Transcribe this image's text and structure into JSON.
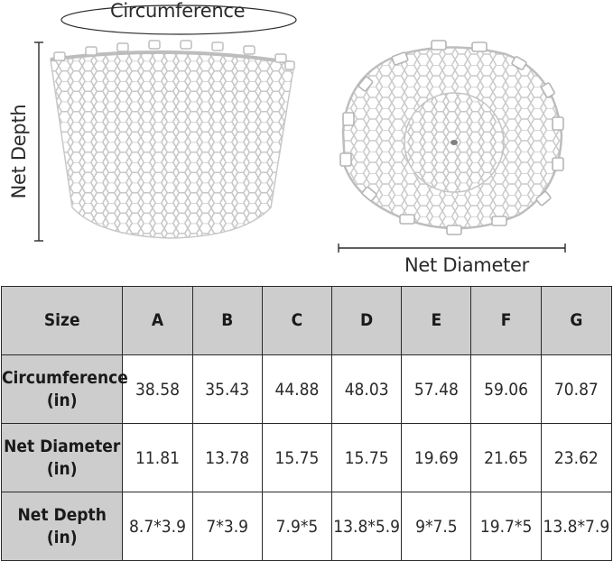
{
  "labels": {
    "circumference": "Circumference",
    "net_depth": "Net Depth",
    "net_diameter": "Net Diameter"
  },
  "table": {
    "corner": "Size",
    "sizes": [
      "A",
      "B",
      "C",
      "D",
      "E",
      "F",
      "G"
    ],
    "rows": [
      {
        "label_line1": "Circumference",
        "label_line2": "(in)",
        "values": [
          "38.58",
          "35.43",
          "44.88",
          "48.03",
          "57.48",
          "59.06",
          "70.87"
        ]
      },
      {
        "label_line1": "Net Diameter",
        "label_line2": "(in)",
        "values": [
          "11.81",
          "13.78",
          "15.75",
          "15.75",
          "19.69",
          "21.65",
          "23.62"
        ]
      },
      {
        "label_line1": "Net Depth",
        "label_line2": "(in)",
        "values": [
          "8.7*3.9",
          "7*3.9",
          "7.9*5",
          "13.8*5.9",
          "9*7.5",
          "19.7*5",
          "13.8*7.9"
        ]
      }
    ]
  },
  "colors": {
    "header_bg": "#cdcdcd",
    "mesh": "#c8c8c8",
    "lines": "#2a2a2a"
  }
}
